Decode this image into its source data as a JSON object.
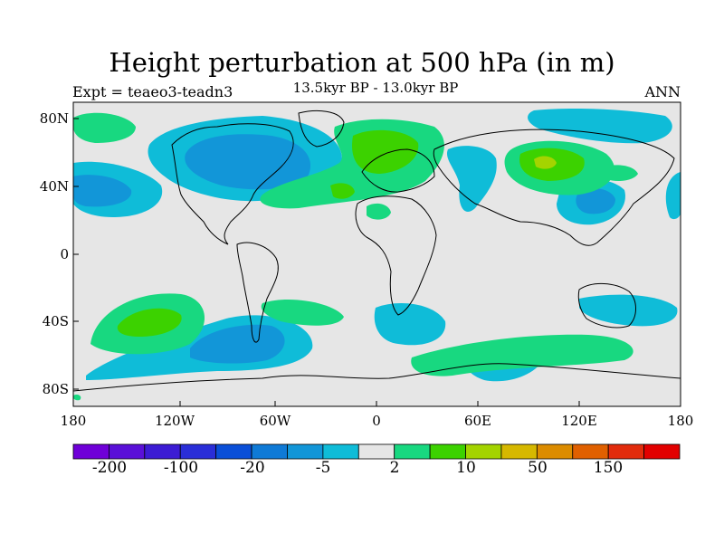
{
  "header": {
    "title": "Height perturbation at 500 hPa (in m)",
    "subtitle": "13.5kyr BP - 13.0kyr BP",
    "left": "Expt = teaeo3-teadn3",
    "right": "ANN"
  },
  "axes": {
    "lat_ticks": [
      "80N",
      "40N",
      "0",
      "40S",
      "80S"
    ],
    "lon_ticks": [
      "180",
      "120W",
      "60W",
      "0",
      "60E",
      "120E",
      "180"
    ]
  },
  "colorbar": {
    "labels": [
      "-200",
      "-100",
      "-20",
      "-5",
      "2",
      "10",
      "50",
      "150"
    ],
    "colors": [
      "#6f00d8",
      "#5a10d8",
      "#3c1cd4",
      "#2a2ed8",
      "#0a4fd8",
      "#0f7ad6",
      "#1296d8",
      "#0fbcd8",
      "#e6e6e6",
      "#18d880",
      "#3cd200",
      "#a4d400",
      "#d6b800",
      "#dc8c00",
      "#e06000",
      "#e22c0c",
      "#e20000"
    ]
  },
  "map": {
    "background": "#e6e6e6",
    "neg_light": "#0fbcd8",
    "neg_mid": "#1296d8",
    "pos_light": "#18d880",
    "pos_mid": "#3cd200",
    "pos_high": "#a4d400"
  }
}
